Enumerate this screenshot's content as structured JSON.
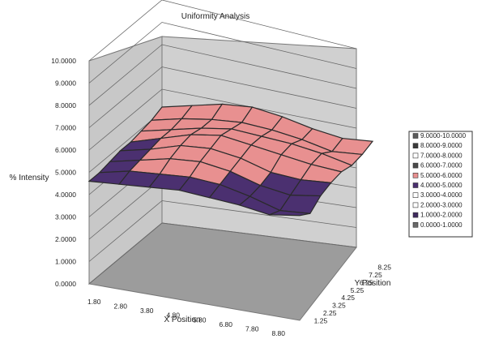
{
  "chart_data": {
    "type": "surface",
    "title": "Uniformity Analysis",
    "xlabel": "X Position",
    "ylabel": "Y Position",
    "zlabel": "% Intensity",
    "x_ticks": [
      "1.80",
      "2.80",
      "3.80",
      "4.80",
      "5.80",
      "6.80",
      "7.80",
      "8.80"
    ],
    "y_ticks": [
      "1.25",
      "2.25",
      "3.25",
      "4.25",
      "5.25",
      "6.25",
      "7.25",
      "8.25"
    ],
    "z_ticks": [
      "0.0000",
      "1.0000",
      "2.0000",
      "3.0000",
      "4.0000",
      "5.0000",
      "6.0000",
      "7.0000",
      "8.0000",
      "9.0000",
      "10.0000"
    ],
    "zlim": [
      0,
      10
    ],
    "legend_position": "right",
    "legend": [
      {
        "label": "9.0000-10.0000",
        "color": "#5a5a5a"
      },
      {
        "label": "8.0000-9.0000",
        "color": "#3a3a3a"
      },
      {
        "label": "7.0000-8.0000",
        "color": "#ffffff"
      },
      {
        "label": "6.0000-7.0000",
        "color": "#4a4a4a"
      },
      {
        "label": "5.0000-6.0000",
        "color": "#e89090"
      },
      {
        "label": "4.0000-5.0000",
        "color": "#4b3070"
      },
      {
        "label": "3.0000-4.0000",
        "color": "#ffffff"
      },
      {
        "label": "2.0000-3.0000",
        "color": "#ffffff"
      },
      {
        "label": "1.0000-2.0000",
        "color": "#3f2a5e"
      },
      {
        "label": "0.0000-1.0000",
        "color": "#6a6a6a"
      }
    ],
    "z": [
      [
        4.6,
        4.7,
        4.8,
        4.9,
        4.8,
        4.7,
        4.5,
        4.7
      ],
      [
        4.6,
        4.9,
        5.0,
        5.1,
        5.0,
        4.7,
        4.3,
        4.4
      ],
      [
        4.7,
        5.0,
        5.3,
        5.4,
        5.2,
        4.8,
        4.6,
        4.8
      ],
      [
        4.8,
        5.1,
        5.5,
        5.6,
        5.4,
        5.0,
        4.9,
        5.0
      ],
      [
        4.8,
        5.2,
        5.6,
        5.8,
        5.6,
        5.4,
        5.2,
        5.1
      ],
      [
        4.9,
        5.2,
        5.5,
        5.7,
        5.6,
        5.5,
        5.3,
        5.0
      ],
      [
        5.0,
        5.3,
        5.5,
        5.6,
        5.5,
        5.3,
        5.0,
        5.1
      ],
      [
        5.2,
        5.5,
        5.8,
        5.9,
        5.7,
        5.4,
        5.2,
        5.3
      ]
    ]
  }
}
